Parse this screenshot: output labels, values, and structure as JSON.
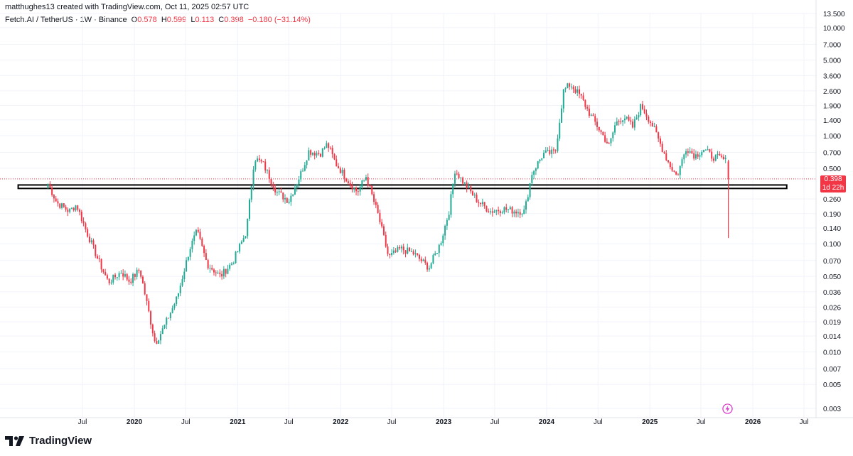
{
  "header": {
    "credit": "matthughes13 created with TradingView.com, Oct 11, 2025 02:57 UTC",
    "symbol": "Fetch.AI / TetherUS · 1W · Binance",
    "open_label": "O",
    "open": "0.578",
    "high_label": "H",
    "high": "0.599",
    "low_label": "L",
    "low": "0.113",
    "close_label": "C",
    "close": "0.398",
    "change": "−0.180 (−31.14%)"
  },
  "price_badge": {
    "price": "0.398",
    "countdown": "1d 22h"
  },
  "brand": {
    "name": "TradingView",
    "icon": "tradingview-logo-icon"
  },
  "colors": {
    "up": "#22ab94",
    "down": "#f23645",
    "grid": "#f0f3fa",
    "axis_text": "#131722"
  },
  "chart_data": {
    "type": "candlestick",
    "scale": "log",
    "y_ticks": [
      "13.500",
      "10.000",
      "7.000",
      "5.000",
      "3.600",
      "2.600",
      "1.900",
      "1.400",
      "1.000",
      "0.700",
      "0.500",
      "0.260",
      "0.190",
      "0.140",
      "0.100",
      "0.070",
      "0.050",
      "0.036",
      "0.026",
      "0.019",
      "0.014",
      "0.010",
      "0.007",
      "0.005",
      "0.003"
    ],
    "x_ticks": [
      {
        "label": "Jul",
        "date": "2019-07-01",
        "bold": false
      },
      {
        "label": "2020",
        "date": "2020-01-01",
        "bold": true
      },
      {
        "label": "Jul",
        "date": "2020-07-01",
        "bold": false
      },
      {
        "label": "2021",
        "date": "2021-01-01",
        "bold": true
      },
      {
        "label": "Jul",
        "date": "2021-07-01",
        "bold": false
      },
      {
        "label": "2022",
        "date": "2022-01-01",
        "bold": true
      },
      {
        "label": "Jul",
        "date": "2022-07-01",
        "bold": false
      },
      {
        "label": "2023",
        "date": "2023-01-01",
        "bold": true
      },
      {
        "label": "Jul",
        "date": "2023-07-01",
        "bold": false
      },
      {
        "label": "2024",
        "date": "2024-01-01",
        "bold": true
      },
      {
        "label": "Jul",
        "date": "2024-07-01",
        "bold": false
      },
      {
        "label": "2025",
        "date": "2025-01-01",
        "bold": true
      },
      {
        "label": "Jul",
        "date": "2025-07-01",
        "bold": false
      },
      {
        "label": "2026",
        "date": "2026-01-01",
        "bold": true
      },
      {
        "label": "Jul",
        "date": "2026-07-01",
        "bold": false
      }
    ],
    "first_candle_date": "2019-03-01",
    "last_candle_date": "2025-10-06",
    "close_anchors": [
      {
        "date": "2019-03-01",
        "close": 0.36
      },
      {
        "date": "2019-04-01",
        "close": 0.24
      },
      {
        "date": "2019-05-15",
        "close": 0.2
      },
      {
        "date": "2019-06-10",
        "close": 0.23
      },
      {
        "date": "2019-07-15",
        "close": 0.13
      },
      {
        "date": "2019-09-01",
        "close": 0.065
      },
      {
        "date": "2019-10-01",
        "close": 0.044
      },
      {
        "date": "2019-11-15",
        "close": 0.055
      },
      {
        "date": "2019-12-15",
        "close": 0.045
      },
      {
        "date": "2020-01-20",
        "close": 0.058
      },
      {
        "date": "2020-03-15",
        "close": 0.012
      },
      {
        "date": "2020-04-15",
        "close": 0.017
      },
      {
        "date": "2020-06-01",
        "close": 0.032
      },
      {
        "date": "2020-07-15",
        "close": 0.09
      },
      {
        "date": "2020-08-10",
        "close": 0.13
      },
      {
        "date": "2020-09-15",
        "close": 0.065
      },
      {
        "date": "2020-11-01",
        "close": 0.05
      },
      {
        "date": "2020-12-15",
        "close": 0.068
      },
      {
        "date": "2021-02-01",
        "close": 0.13
      },
      {
        "date": "2021-03-01",
        "close": 0.62
      },
      {
        "date": "2021-04-01",
        "close": 0.55
      },
      {
        "date": "2021-05-20",
        "close": 0.3
      },
      {
        "date": "2021-07-01",
        "close": 0.25
      },
      {
        "date": "2021-08-15",
        "close": 0.46
      },
      {
        "date": "2021-09-10",
        "close": 0.72
      },
      {
        "date": "2021-10-20",
        "close": 0.68
      },
      {
        "date": "2021-11-15",
        "close": 0.84
      },
      {
        "date": "2021-12-15",
        "close": 0.55
      },
      {
        "date": "2022-02-01",
        "close": 0.37
      },
      {
        "date": "2022-03-01",
        "close": 0.3
      },
      {
        "date": "2022-04-01",
        "close": 0.42
      },
      {
        "date": "2022-05-15",
        "close": 0.18
      },
      {
        "date": "2022-06-20",
        "close": 0.075
      },
      {
        "date": "2022-08-01",
        "close": 0.09
      },
      {
        "date": "2022-09-15",
        "close": 0.082
      },
      {
        "date": "2022-11-10",
        "close": 0.06
      },
      {
        "date": "2022-12-20",
        "close": 0.1
      },
      {
        "date": "2023-01-20",
        "close": 0.2
      },
      {
        "date": "2023-02-10",
        "close": 0.48
      },
      {
        "date": "2023-03-15",
        "close": 0.36
      },
      {
        "date": "2023-05-01",
        "close": 0.25
      },
      {
        "date": "2023-06-15",
        "close": 0.2
      },
      {
        "date": "2023-08-01",
        "close": 0.21
      },
      {
        "date": "2023-09-15",
        "close": 0.2
      },
      {
        "date": "2023-10-15",
        "close": 0.2
      },
      {
        "date": "2023-11-10",
        "close": 0.45
      },
      {
        "date": "2023-12-20",
        "close": 0.68
      },
      {
        "date": "2024-02-01",
        "close": 0.7
      },
      {
        "date": "2024-03-01",
        "close": 2.6
      },
      {
        "date": "2024-03-25",
        "close": 3.0
      },
      {
        "date": "2024-05-01",
        "close": 2.3
      },
      {
        "date": "2024-06-01",
        "close": 1.6
      },
      {
        "date": "2024-07-01",
        "close": 1.2
      },
      {
        "date": "2024-08-10",
        "close": 0.8
      },
      {
        "date": "2024-09-01",
        "close": 1.3
      },
      {
        "date": "2024-10-01",
        "close": 1.5
      },
      {
        "date": "2024-11-01",
        "close": 1.2
      },
      {
        "date": "2024-12-01",
        "close": 1.9
      },
      {
        "date": "2025-01-10",
        "close": 1.25
      },
      {
        "date": "2025-02-10",
        "close": 0.8
      },
      {
        "date": "2025-03-10",
        "close": 0.55
      },
      {
        "date": "2025-04-07",
        "close": 0.42
      },
      {
        "date": "2025-05-10",
        "close": 0.78
      },
      {
        "date": "2025-06-10",
        "close": 0.65
      },
      {
        "date": "2025-07-10",
        "close": 0.75
      },
      {
        "date": "2025-08-10",
        "close": 0.64
      },
      {
        "date": "2025-09-15",
        "close": 0.61
      },
      {
        "date": "2025-09-29",
        "close": 0.578
      }
    ],
    "last_candle": {
      "date": "2025-10-06",
      "open": 0.578,
      "high": 0.599,
      "low": 0.113,
      "close": 0.398
    },
    "support_zone": {
      "start_date": "2019-03-01",
      "end_date": "2026-05-01",
      "low": 0.325,
      "high": 0.35
    },
    "current_price_line": 0.398
  }
}
